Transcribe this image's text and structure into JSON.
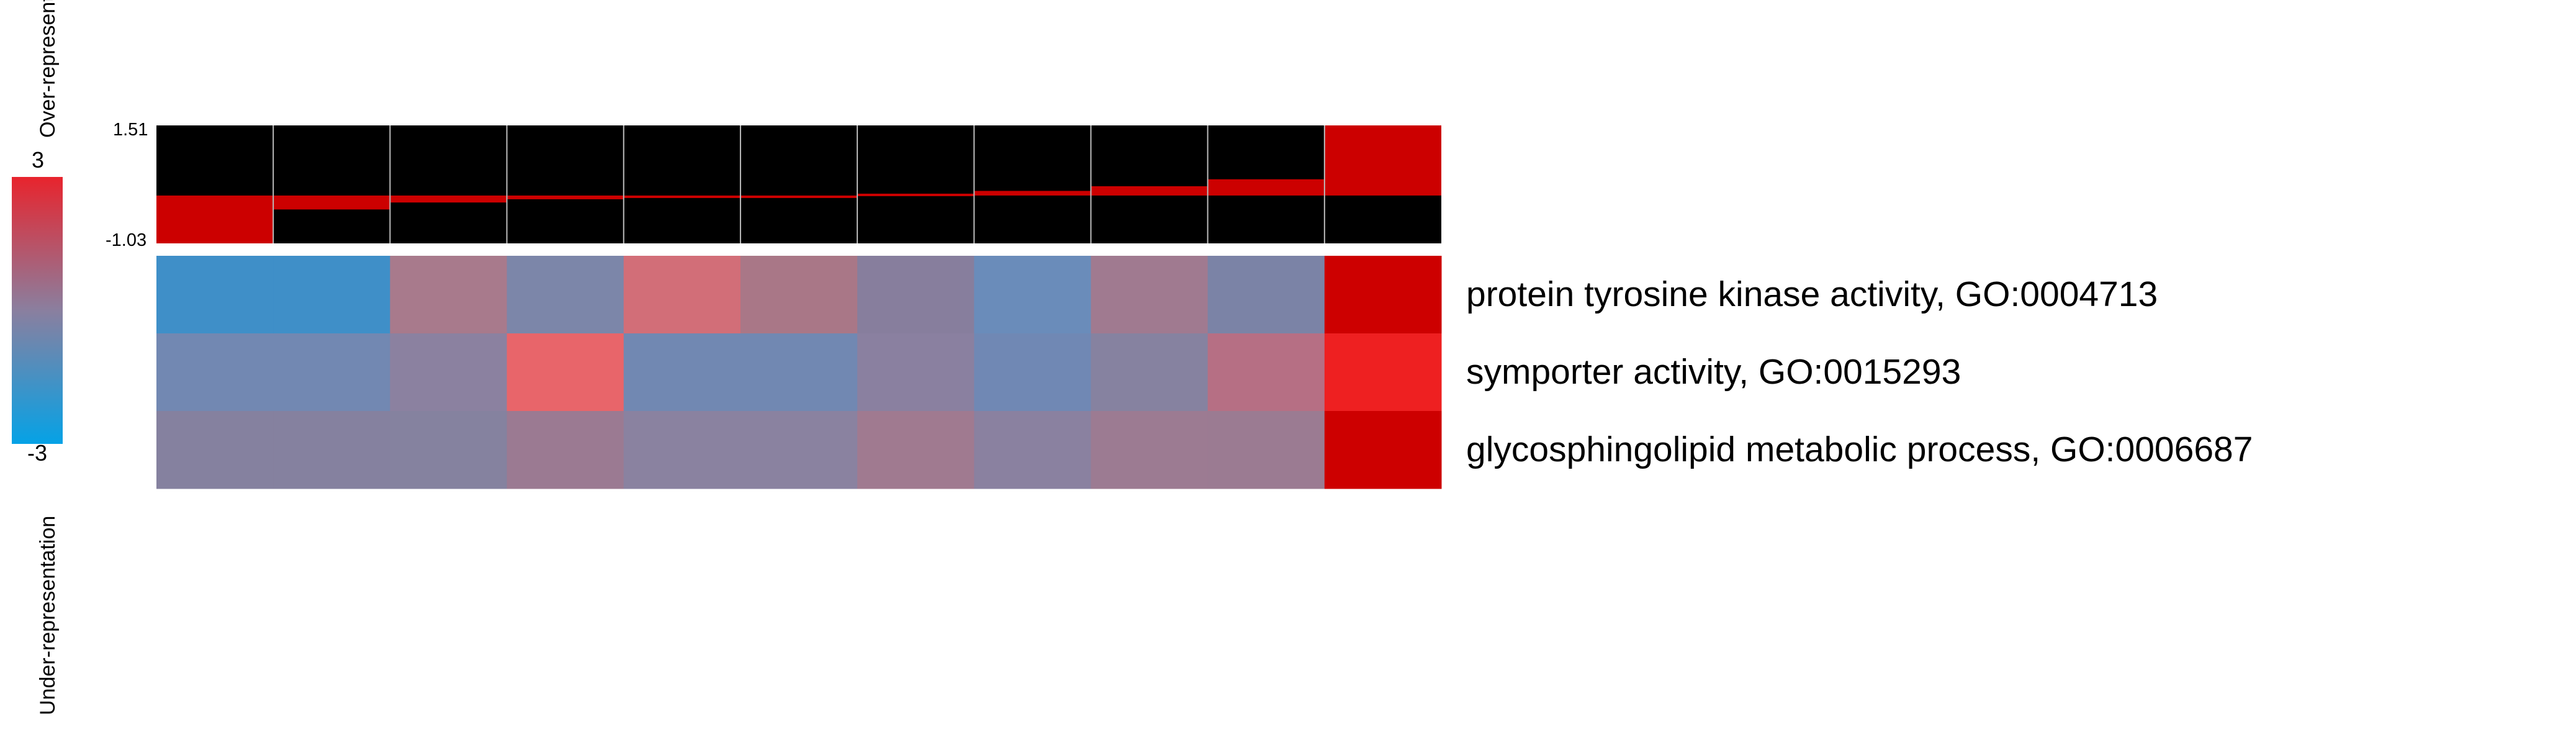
{
  "chart_data": {
    "type": "heatmap",
    "title": "",
    "colorbar": {
      "max_label": "3",
      "min_label": "-3",
      "range": [
        -3,
        3
      ],
      "over_label": "Over-representation",
      "under_label": "Under-representation",
      "colors": {
        "low": "#05a2e6",
        "mid": "#8a7f9f",
        "high": "#e8242d"
      }
    },
    "profile": {
      "ymax_label": "1.51",
      "ymin_label": "-1.03",
      "ylim": [
        -1.03,
        1.51
      ],
      "values": [
        -1.03,
        -0.3,
        -0.15,
        -0.08,
        -0.03,
        0.0,
        0.04,
        0.1,
        0.2,
        0.35,
        1.51
      ],
      "bar_color": "#cc0000",
      "background": "#000000"
    },
    "row_labels": [
      "protein tyrosine kinase activity, GO:0004713",
      "symporter activity, GO:0015293",
      "glycosphingolipid metabolic process, GO:0006687"
    ],
    "cells": [
      [
        "#3f8fc8",
        "#3f8fc8",
        "#a87a8c",
        "#7c86a9",
        "#d26e78",
        "#a97787",
        "#877e9d",
        "#6a8cba",
        "#a07a90",
        "#7b83a6",
        "#cd0000"
      ],
      [
        "#7288b2",
        "#7288b2",
        "#8b81a0",
        "#e8656a",
        "#7188b2",
        "#7188b2",
        "#8a80a0",
        "#7088b4",
        "#8682a0",
        "#b66f84",
        "#ee2021"
      ],
      [
        "#85819f",
        "#85819f",
        "#85829f",
        "#9b7a92",
        "#8a82a0",
        "#8a82a0",
        "#a07a90",
        "#8a81a0",
        "#9c7b92",
        "#9b7b92",
        "#cd0000"
      ]
    ]
  }
}
